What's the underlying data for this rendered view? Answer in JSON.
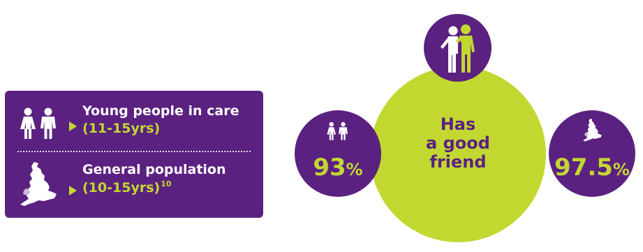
{
  "legend": {
    "young_people": {
      "title": "Young people in care",
      "subtitle": "(11-15yrs)"
    },
    "general_population": {
      "title": "General population",
      "subtitle": "(10-15yrs)",
      "footnote": "10"
    }
  },
  "indicator": {
    "label_lines": [
      "Has",
      "a good",
      "friend"
    ],
    "young_people_value": "93",
    "general_population_value": "97.5",
    "unit": "%"
  },
  "colors": {
    "purple": "#5b2180",
    "lime": "#c2d831",
    "white": "#ffffff"
  },
  "icons": {
    "young_people": "girl-boy-icon",
    "general_population": "england-map-icon",
    "friendship": "friends-icon"
  }
}
